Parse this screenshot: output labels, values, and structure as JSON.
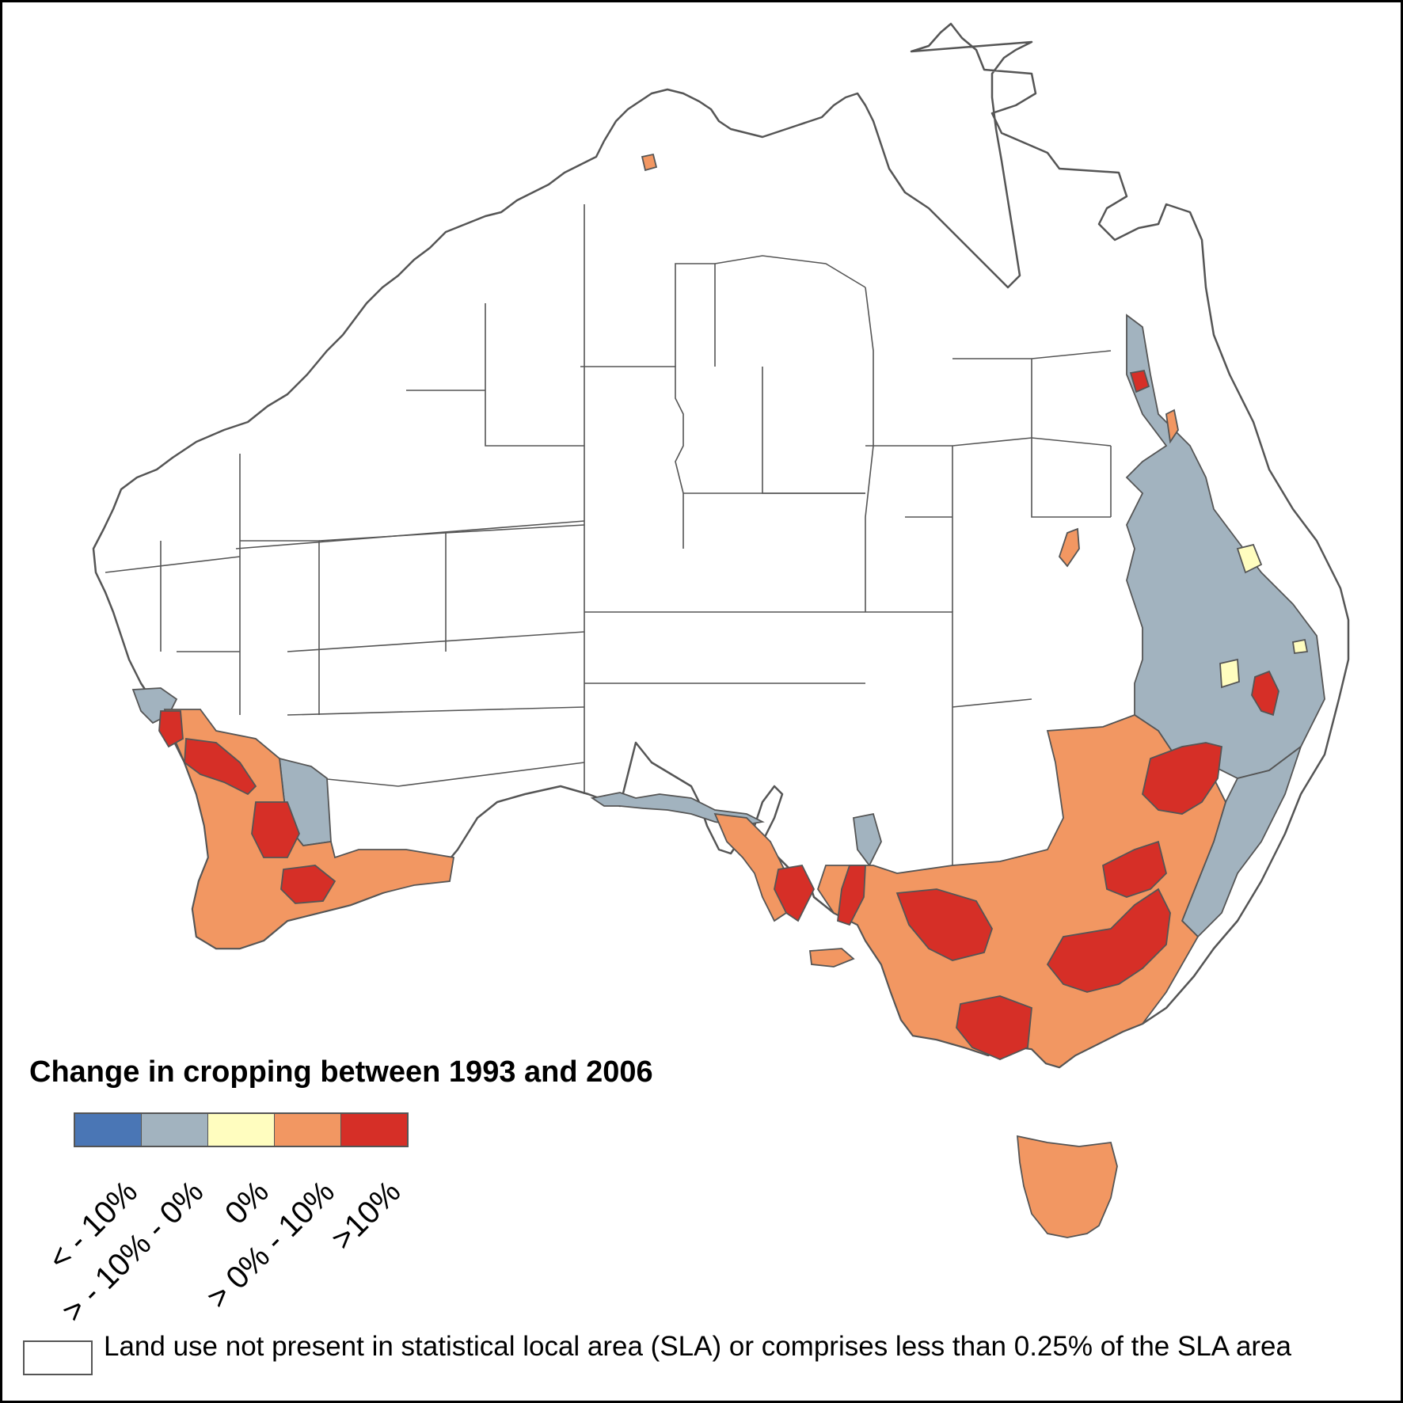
{
  "legend": {
    "title": "Change in cropping between 1993 and 2006",
    "classes": [
      {
        "label": "< - 10%",
        "color": "#4a76b5"
      },
      {
        "label": "> - 10% - 0%",
        "color": "#a2b3bf"
      },
      {
        "label": "0%",
        "color": "#fffdbf"
      },
      {
        "label": "> 0% - 10%",
        "color": "#f29762"
      },
      {
        "label": ">10%",
        "color": "#d62f27"
      }
    ],
    "no_data_label": "Land use not present in statistical local area (SLA) or comprises less than 0.25% of the SLA area"
  },
  "colors": {
    "boundary": "#555555",
    "land": "#ffffff",
    "frame": "#000000"
  }
}
